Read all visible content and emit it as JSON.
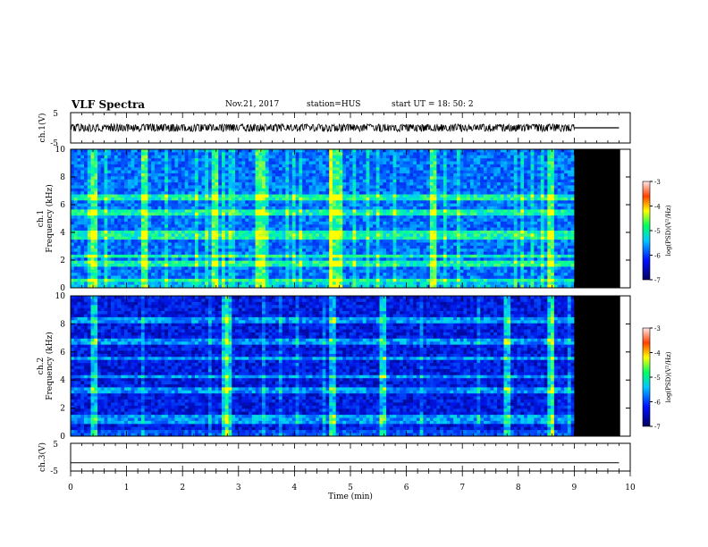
{
  "header": {
    "title": "VLF Spectra",
    "date": "Nov.21, 2017",
    "station": "station=HUS",
    "start": "start UT =  18: 50: 2"
  },
  "chart_data": [
    {
      "type": "line",
      "ylabel": "ch.1(V)",
      "ylim": [
        -5,
        5
      ],
      "yticks": [
        "5",
        "-5"
      ],
      "xlim": [
        0,
        10
      ],
      "note": "waveform band at ~0 V from 0 to 9 min, flat line after"
    },
    {
      "type": "heatmap",
      "ylabel": "ch.1 Frequency (kHz)",
      "ylim": [
        0,
        10
      ],
      "yticks": [
        "0",
        "2",
        "4",
        "6",
        "8",
        "10"
      ],
      "xlim": [
        0,
        10
      ],
      "data_end_min": 9.0,
      "enhanced_bands_khz": [
        0.5,
        1.7,
        2.3,
        3.7,
        4.0,
        5.4,
        6.5
      ],
      "enhanced_times_min": [
        0.4,
        1.3,
        2.6,
        3.4,
        4.7,
        4.8,
        6.5,
        8.6
      ],
      "colorbar": {
        "label": "log(PSD)(V²/Hz)",
        "ticks": [
          "-3",
          "-4",
          "-5",
          "-6",
          "-7"
        ]
      }
    },
    {
      "type": "heatmap",
      "ylabel": "ch.2 Frequency (kHz)",
      "ylim": [
        0,
        10
      ],
      "yticks": [
        "0",
        "2",
        "4",
        "6",
        "8",
        "10"
      ],
      "xlim": [
        0,
        10
      ],
      "data_end_min": 9.0,
      "enhanced_bands_khz": [
        1.0,
        1.3,
        3.3,
        4.2,
        5.6,
        6.7,
        8.3
      ],
      "enhanced_times_min": [
        0.4,
        2.8,
        4.7,
        5.6,
        7.8,
        8.6
      ],
      "colorbar": {
        "label": "log(PSD)(V²/Hz)",
        "ticks": [
          "-3",
          "-4",
          "-5",
          "-6",
          "-7"
        ]
      }
    },
    {
      "type": "line",
      "ylabel": "ch.3(V)",
      "ylim": [
        -5,
        5
      ],
      "yticks": [
        "5",
        "-5"
      ],
      "xlim": [
        0,
        10
      ],
      "xlabel": "Time (min)",
      "xticks": [
        "0",
        "1",
        "2",
        "3",
        "4",
        "5",
        "6",
        "7",
        "8",
        "9",
        "10"
      ],
      "note": "flat line at ~-2 V"
    }
  ],
  "colors": {
    "low": "#000080",
    "mid": "#00ff80",
    "high": "#ff0000",
    "nodata": "#000000"
  }
}
